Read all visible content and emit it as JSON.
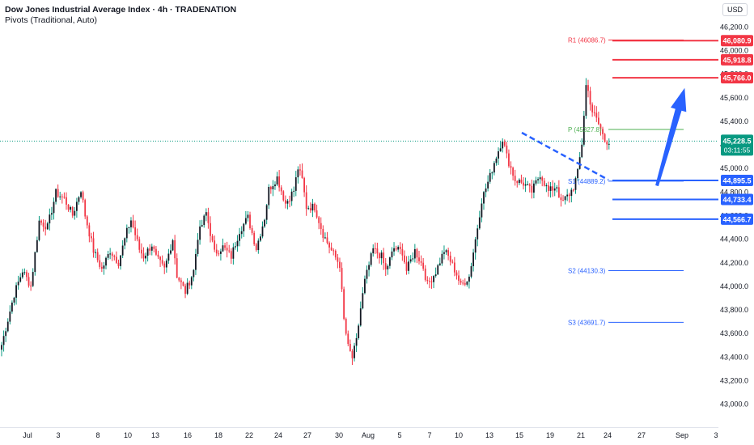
{
  "header": {
    "title": "Dow Jones Industrial Average Index · 4h · TRADENATION",
    "subtitle": "Pivots (Traditional, Auto)",
    "currency": "USD"
  },
  "colors": {
    "up": "#089981",
    "up_body": "#131722",
    "down": "#f23645",
    "resistance": "#f23645",
    "support": "#2962ff",
    "pivot": "#4caf50",
    "arrow": "#2962ff",
    "last_price_bg": "#089981"
  },
  "chart_data": {
    "type": "candlestick",
    "y_axis": {
      "ylim": [
        42850,
        46350
      ],
      "ticks": [
        "46,200.0",
        "46,000.0",
        "45,800.0",
        "45,600.0",
        "45,400.0",
        "45,200.0",
        "45,000.0",
        "44,800.0",
        "44,600.0",
        "44,400.0",
        "44,200.0",
        "44,000.0",
        "43,800.0",
        "43,600.0",
        "43,400.0",
        "43,200.0",
        "43,000.0"
      ]
    },
    "x_axis": {
      "ticks": [
        "Jul",
        "3",
        "8",
        "10",
        "13",
        "16",
        "18",
        "22",
        "24",
        "27",
        "30",
        "Aug",
        "5",
        "7",
        "10",
        "13",
        "15",
        "19",
        "21",
        "24",
        "27",
        "Sep",
        "3"
      ]
    },
    "price_labels": [
      {
        "text": "46,080.9",
        "value": 46080.9,
        "type": "resistance"
      },
      {
        "text": "45,918.8",
        "value": 45918.8,
        "type": "resistance"
      },
      {
        "text": "45,766.0",
        "value": 45766.0,
        "type": "resistance"
      },
      {
        "text": "44,895.5",
        "value": 44895.5,
        "type": "support"
      },
      {
        "text": "44,733.4",
        "value": 44733.4,
        "type": "support"
      },
      {
        "text": "44,566.7",
        "value": 44566.7,
        "type": "support"
      }
    ],
    "last_price": {
      "value": 45228.5,
      "text": "45,228.5",
      "countdown": "03:11:55"
    },
    "pivots": [
      {
        "label": "R1 (46086.7)",
        "value": 46086.7,
        "type": "resistance"
      },
      {
        "label": "P (45327.8)",
        "value": 45327.8,
        "type": "pivot"
      },
      {
        "label": "S1 (44889.2)",
        "value": 44889.2,
        "type": "support"
      },
      {
        "label": "S2 (44130.3)",
        "value": 44130.3,
        "type": "support"
      },
      {
        "label": "S3 (43691.7)",
        "value": 43691.7,
        "type": "support"
      }
    ],
    "trendline": {
      "from": 45300,
      "to": 44900,
      "style": "dashed"
    },
    "forecast_arrow": {
      "from": 44850,
      "to": 45600,
      "direction": "up"
    },
    "waypoints": [
      [
        0,
        43500
      ],
      [
        6,
        43930
      ],
      [
        10,
        44130
      ],
      [
        14,
        44000
      ],
      [
        18,
        44550
      ],
      [
        22,
        44500
      ],
      [
        26,
        44790
      ],
      [
        30,
        44740
      ],
      [
        34,
        44600
      ],
      [
        38,
        44820
      ],
      [
        40,
        44600
      ],
      [
        44,
        44300
      ],
      [
        48,
        44140
      ],
      [
        52,
        44300
      ],
      [
        56,
        44200
      ],
      [
        60,
        44460
      ],
      [
        62,
        44560
      ],
      [
        66,
        44310
      ],
      [
        68,
        44250
      ],
      [
        72,
        44350
      ],
      [
        74,
        44240
      ],
      [
        78,
        44140
      ],
      [
        82,
        44400
      ],
      [
        84,
        44090
      ],
      [
        88,
        43950
      ],
      [
        92,
        44130
      ],
      [
        94,
        44420
      ],
      [
        98,
        44620
      ],
      [
        102,
        44280
      ],
      [
        106,
        44330
      ],
      [
        110,
        44250
      ],
      [
        114,
        44470
      ],
      [
        118,
        44580
      ],
      [
        122,
        44320
      ],
      [
        126,
        44580
      ],
      [
        128,
        44820
      ],
      [
        132,
        44920
      ],
      [
        136,
        44700
      ],
      [
        140,
        44810
      ],
      [
        142,
        45000
      ],
      [
        144,
        44900
      ],
      [
        146,
        44670
      ],
      [
        150,
        44670
      ],
      [
        154,
        44440
      ],
      [
        158,
        44300
      ],
      [
        162,
        44180
      ],
      [
        164,
        43710
      ],
      [
        166,
        43480
      ],
      [
        168,
        43390
      ],
      [
        170,
        43530
      ],
      [
        172,
        43810
      ],
      [
        174,
        44040
      ],
      [
        178,
        44310
      ],
      [
        182,
        44250
      ],
      [
        184,
        44130
      ],
      [
        188,
        44320
      ],
      [
        192,
        44290
      ],
      [
        194,
        44130
      ],
      [
        198,
        44300
      ],
      [
        202,
        44160
      ],
      [
        204,
        44010
      ],
      [
        208,
        44120
      ],
      [
        212,
        44300
      ],
      [
        214,
        44250
      ],
      [
        218,
        44100
      ],
      [
        220,
        44000
      ],
      [
        224,
        44080
      ],
      [
        228,
        44500
      ],
      [
        230,
        44730
      ],
      [
        234,
        44930
      ],
      [
        236,
        45050
      ],
      [
        240,
        45250
      ],
      [
        242,
        45100
      ],
      [
        246,
        44900
      ],
      [
        250,
        44870
      ],
      [
        254,
        44800
      ],
      [
        258,
        44950
      ],
      [
        262,
        44800
      ],
      [
        266,
        44850
      ],
      [
        268,
        44700
      ],
      [
        272,
        44780
      ],
      [
        274,
        44840
      ],
      [
        276,
        44960
      ],
      [
        278,
        45210
      ],
      [
        280,
        45700
      ],
      [
        281,
        45650
      ],
      [
        283,
        45480
      ],
      [
        285,
        45410
      ],
      [
        287,
        45330
      ],
      [
        289,
        45230
      ],
      [
        291,
        45230
      ]
    ]
  }
}
